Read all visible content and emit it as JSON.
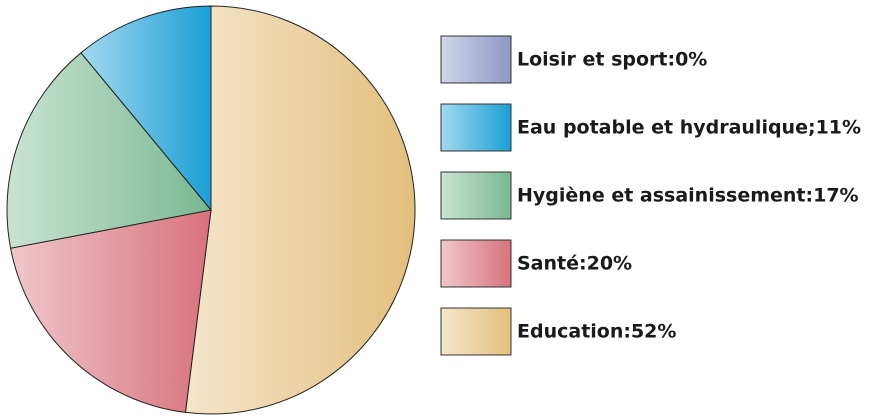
{
  "chart_data": {
    "type": "pie",
    "value_labels": [
      "Loisir et sport:0%",
      "Eau potable et hydraulique;11%",
      "Hygiène et assainissement:17%",
      "Santé:20%",
      "Education:52%"
    ],
    "values": [
      0,
      11,
      17,
      20,
      52
    ],
    "colors": [
      "#8d98c6",
      "#1a9fd6",
      "#79b890",
      "#d8727c",
      "#e3bf7c"
    ]
  }
}
